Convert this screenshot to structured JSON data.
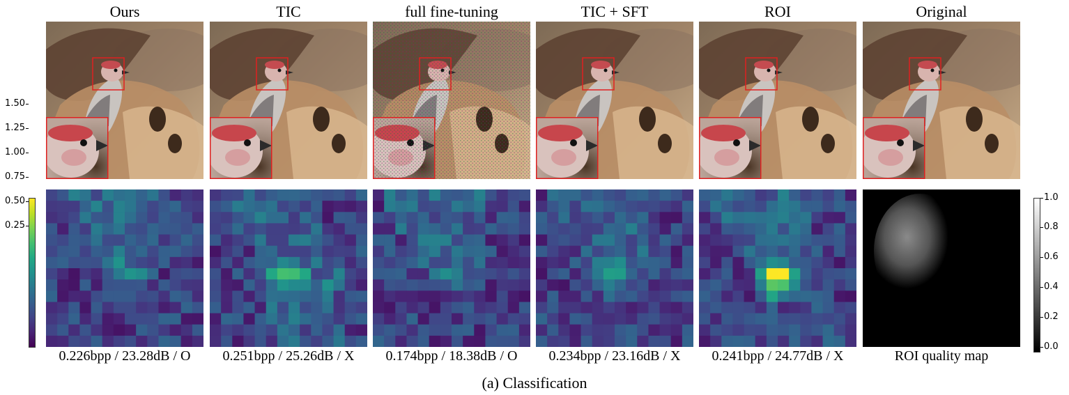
{
  "figure": {
    "columns": [
      {
        "title": "Ours",
        "caption": "0.226bpp / 23.28dB / O",
        "heat_seed": 1,
        "blob": 0.25,
        "artifact": false
      },
      {
        "title": "TIC",
        "caption": "0.251bpp / 25.26dB / X",
        "heat_seed": 2,
        "blob": 0.55,
        "artifact": false
      },
      {
        "title": "full fine-tuning",
        "caption": "0.174bpp / 18.38dB / O",
        "heat_seed": 3,
        "blob": 0.1,
        "artifact": true
      },
      {
        "title": "TIC + SFT",
        "caption": "0.234bpp / 23.16dB / X",
        "heat_seed": 4,
        "blob": 0.3,
        "artifact": false
      },
      {
        "title": "ROI",
        "caption": "0.241bpp / 24.77dB / X",
        "heat_seed": 5,
        "blob": 1.0,
        "artifact": false
      },
      {
        "title": "Original",
        "caption": "ROI quality map",
        "heat_seed": 0,
        "blob": 0,
        "artifact": false
      }
    ],
    "left_colorbar_ticks": [
      "1.50",
      "1.25",
      "1.00",
      "0.75",
      "0.50",
      "0.25"
    ],
    "right_colorbar_ticks": [
      "1.0",
      "0.8",
      "0.6",
      "0.4",
      "0.2",
      "0.0"
    ],
    "subcaption": "(a)  Classification",
    "colors": {
      "zoom_box": "#e02020",
      "viridis_low": "#440154",
      "viridis_high": "#fde725"
    }
  }
}
